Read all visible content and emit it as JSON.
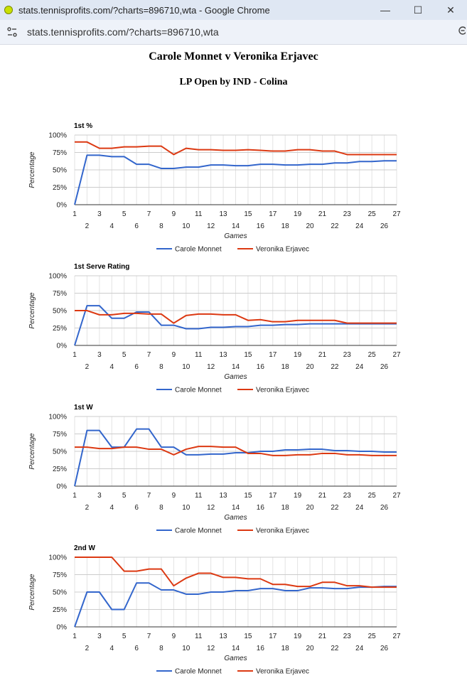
{
  "browser": {
    "window_title": "stats.tennisprofits.com/?charts=896710,wta - Google Chrome",
    "url": "stats.tennisprofits.com/?charts=896710,wta",
    "controls": {
      "minimize": "—",
      "maximize": "☐",
      "close": "✕"
    }
  },
  "page": {
    "match_title": "Carole Monnet v Veronika Erjavec",
    "event_title": "LP Open by IND - Colina"
  },
  "chart_data": [
    {
      "type": "line",
      "title": "1st %",
      "xlabel": "Games",
      "ylabel": "Percentage",
      "ylim": [
        0,
        100
      ],
      "yticks": [
        "0%",
        "25%",
        "50%",
        "75%",
        "100%"
      ],
      "x": [
        1,
        2,
        3,
        4,
        5,
        6,
        7,
        8,
        9,
        10,
        11,
        12,
        13,
        14,
        15,
        16,
        17,
        18,
        19,
        20,
        21,
        22,
        23,
        24,
        25,
        26,
        27
      ],
      "series": [
        {
          "name": "Carole Monnet",
          "color": "#3366cc",
          "values": [
            0,
            71,
            71,
            69,
            69,
            58,
            58,
            52,
            52,
            54,
            54,
            57,
            57,
            56,
            56,
            58,
            58,
            57,
            57,
            58,
            58,
            60,
            60,
            62,
            62,
            63,
            63
          ]
        },
        {
          "name": "Veronika Erjavec",
          "color": "#dc3912",
          "values": [
            90,
            90,
            81,
            81,
            83,
            83,
            84,
            84,
            72,
            81,
            79,
            79,
            78,
            78,
            79,
            78,
            77,
            77,
            79,
            79,
            77,
            77,
            72,
            72,
            72,
            72,
            72
          ]
        }
      ],
      "legend_position": "bottom"
    },
    {
      "type": "line",
      "title": "1st Serve Rating",
      "xlabel": "Games",
      "ylabel": "Percentage",
      "ylim": [
        0,
        100
      ],
      "yticks": [
        "0%",
        "25%",
        "50%",
        "75%",
        "100%"
      ],
      "x": [
        1,
        2,
        3,
        4,
        5,
        6,
        7,
        8,
        9,
        10,
        11,
        12,
        13,
        14,
        15,
        16,
        17,
        18,
        19,
        20,
        21,
        22,
        23,
        24,
        25,
        26,
        27
      ],
      "series": [
        {
          "name": "Carole Monnet",
          "color": "#3366cc",
          "values": [
            0,
            57,
            57,
            39,
            39,
            48,
            48,
            29,
            29,
            24,
            24,
            26,
            26,
            27,
            27,
            29,
            29,
            30,
            30,
            31,
            31,
            31,
            31,
            31,
            31,
            31,
            31
          ]
        },
        {
          "name": "Veronika Erjavec",
          "color": "#dc3912",
          "values": [
            50,
            50,
            44,
            44,
            46,
            46,
            45,
            45,
            32,
            43,
            45,
            45,
            44,
            44,
            36,
            37,
            34,
            34,
            36,
            36,
            36,
            36,
            32,
            32,
            32,
            32,
            32
          ]
        }
      ],
      "legend_position": "bottom"
    },
    {
      "type": "line",
      "title": "1st W",
      "xlabel": "Games",
      "ylabel": "Percentage",
      "ylim": [
        0,
        100
      ],
      "yticks": [
        "0%",
        "25%",
        "50%",
        "75%",
        "100%"
      ],
      "x": [
        1,
        2,
        3,
        4,
        5,
        6,
        7,
        8,
        9,
        10,
        11,
        12,
        13,
        14,
        15,
        16,
        17,
        18,
        19,
        20,
        21,
        22,
        23,
        24,
        25,
        26,
        27
      ],
      "series": [
        {
          "name": "Carole Monnet",
          "color": "#3366cc",
          "values": [
            0,
            80,
            80,
            56,
            56,
            82,
            82,
            56,
            56,
            45,
            45,
            46,
            46,
            48,
            48,
            50,
            50,
            52,
            52,
            53,
            53,
            51,
            51,
            50,
            50,
            49,
            49
          ]
        },
        {
          "name": "Veronika Erjavec",
          "color": "#dc3912",
          "values": [
            56,
            56,
            54,
            54,
            56,
            56,
            53,
            53,
            45,
            53,
            57,
            57,
            56,
            56,
            47,
            47,
            44,
            44,
            45,
            45,
            47,
            47,
            45,
            45,
            44,
            44,
            44
          ]
        }
      ],
      "legend_position": "bottom"
    },
    {
      "type": "line",
      "title": "2nd W",
      "xlabel": "Games",
      "ylabel": "Percentage",
      "ylim": [
        0,
        100
      ],
      "yticks": [
        "0%",
        "25%",
        "50%",
        "75%",
        "100%"
      ],
      "x": [
        1,
        2,
        3,
        4,
        5,
        6,
        7,
        8,
        9,
        10,
        11,
        12,
        13,
        14,
        15,
        16,
        17,
        18,
        19,
        20,
        21,
        22,
        23,
        24,
        25,
        26,
        27
      ],
      "series": [
        {
          "name": "Carole Monnet",
          "color": "#3366cc",
          "values": [
            0,
            50,
            50,
            25,
            25,
            63,
            63,
            53,
            53,
            47,
            47,
            50,
            50,
            52,
            52,
            55,
            55,
            52,
            52,
            56,
            56,
            55,
            55,
            57,
            57,
            58,
            58
          ]
        },
        {
          "name": "Veronika Erjavec",
          "color": "#dc3912",
          "values": [
            100,
            100,
            100,
            100,
            80,
            80,
            83,
            83,
            59,
            70,
            77,
            77,
            71,
            71,
            69,
            69,
            61,
            61,
            58,
            58,
            64,
            64,
            59,
            59,
            57,
            57,
            57
          ]
        }
      ],
      "legend_position": "bottom"
    }
  ]
}
